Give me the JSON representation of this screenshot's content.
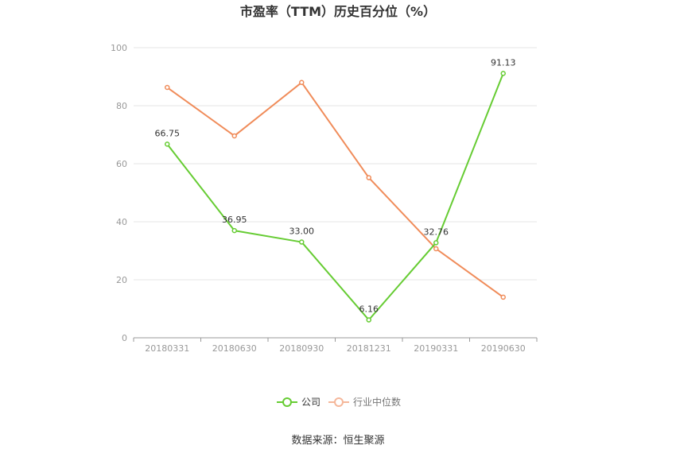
{
  "title": "市盈率（TTM）历史百分位（%）",
  "source": "数据来源：恒生聚源",
  "legend": {
    "company": "公司",
    "industry": "行业中位数"
  },
  "colors": {
    "company": "#66cc33",
    "industry": "#f08c5a",
    "grid": "#e6e6e6",
    "axis": "#999999"
  },
  "chart_data": {
    "type": "line",
    "title": "市盈率（TTM）历史百分位（%）",
    "categories": [
      "20180331",
      "20180630",
      "20180930",
      "20181231",
      "20190331",
      "20190630"
    ],
    "ylim": [
      0,
      100
    ],
    "yticks": [
      0,
      20,
      40,
      60,
      80,
      100
    ],
    "grid": true,
    "legend_position": "bottom",
    "series": [
      {
        "name": "公司",
        "values": [
          66.75,
          36.95,
          33.0,
          6.16,
          32.76,
          91.13
        ],
        "labels": [
          "66.75",
          "36.95",
          "33.00",
          "6.16",
          "32.76",
          "91.13"
        ]
      },
      {
        "name": "行业中位数",
        "values": [
          86.3,
          69.6,
          88.0,
          55.2,
          30.7,
          14.0
        ]
      }
    ]
  }
}
